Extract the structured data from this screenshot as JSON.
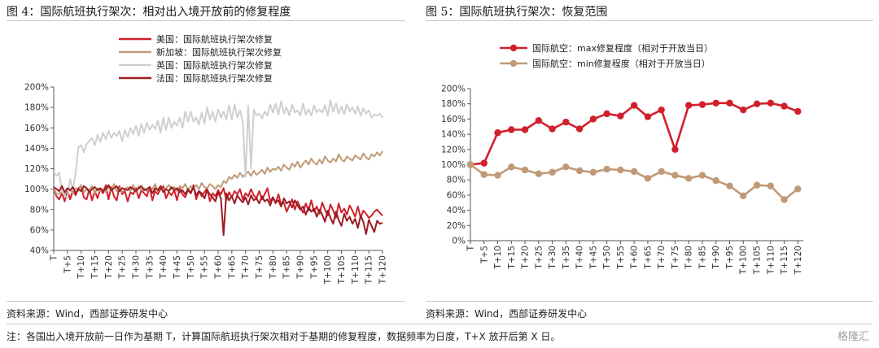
{
  "left": {
    "title": "图 4：国际航班执行架次：相对出入境开放前的修复程度",
    "source": "资料来源：Wind，西部证券研发中心"
  },
  "right": {
    "title": "图 5：国际航班执行架次：恢复范围",
    "source": "资料来源：Wind，西部证券研发中心"
  },
  "note": "注：各国出入境开放前一日作为基期 T，计算国际航班执行架次相对于基期的修复程度，数据频率为日度，T+X 放开后第 X 日。",
  "watermark": "格隆汇",
  "chart_data": [
    {
      "type": "line",
      "x_tick_labels": [
        "T",
        "T+5",
        "T+10",
        "T+15",
        "T+20",
        "T+25",
        "T+30",
        "T+35",
        "T+40",
        "T+45",
        "T+50",
        "T+55",
        "T+60",
        "T+65",
        "T+70",
        "T+75",
        "T+80",
        "T+85",
        "T+90",
        "T+95",
        "T+100",
        "T+105",
        "T+110",
        "T+115",
        "T+120"
      ],
      "ylim": [
        40,
        200
      ],
      "y_ticks": [
        "40%",
        "60%",
        "80%",
        "100%",
        "120%",
        "140%",
        "160%",
        "180%",
        "200%"
      ],
      "legend_position": "top-left",
      "series": [
        {
          "name": "美国：国际航班执行架次修复",
          "color": "#d0202c",
          "values": [
            100,
            93,
            90,
            96,
            88,
            100,
            90,
            99,
            94,
            101,
            103,
            92,
            90,
            100,
            89,
            98,
            91,
            100,
            96,
            104,
            90,
            102,
            93,
            89,
            103,
            95,
            98,
            88,
            97,
            95,
            101,
            91,
            99,
            96,
            93,
            102,
            89,
            98,
            95,
            100,
            103,
            91,
            97,
            94,
            99,
            89,
            101,
            95,
            92,
            99,
            96,
            104,
            90,
            98,
            93,
            97,
            101,
            88,
            96,
            93,
            99,
            95,
            101,
            89,
            97,
            92,
            98,
            95,
            100,
            90,
            96,
            93,
            100,
            94,
            91,
            98,
            90,
            95,
            101,
            88,
            92,
            86,
            95,
            85,
            87,
            78,
            84,
            90,
            80,
            88,
            82,
            77,
            86,
            79,
            89,
            78,
            83,
            76,
            87,
            80,
            74,
            85,
            79,
            72,
            86,
            77,
            81,
            75,
            84,
            79,
            73,
            83,
            72,
            79,
            76,
            72,
            74,
            78,
            80,
            77,
            74
          ]
        },
        {
          "name": "新加坡：国际航班执行架次修复",
          "color": "#c09a77",
          "values": [
            101,
            95,
            96,
            97,
            94,
            100,
            99,
            96,
            101,
            98,
            104,
            97,
            100,
            99,
            103,
            96,
            101,
            98,
            100,
            97,
            102,
            99,
            105,
            98,
            101,
            97,
            100,
            102,
            98,
            104,
            97,
            103,
            99,
            101,
            98,
            102,
            100,
            105,
            98,
            103,
            99,
            101,
            104,
            100,
            102,
            98,
            103,
            101,
            105,
            99,
            103,
            101,
            104,
            100,
            106,
            102,
            101,
            105,
            103,
            100,
            104,
            102,
            108,
            106,
            112,
            110,
            114,
            111,
            116,
            112,
            115,
            117,
            113,
            118,
            114,
            116,
            119,
            115,
            121,
            117,
            120,
            119,
            122,
            118,
            124,
            121,
            119,
            125,
            122,
            127,
            121,
            125,
            128,
            124,
            130,
            126,
            124,
            129,
            125,
            132,
            128,
            126,
            130,
            127,
            134,
            129,
            127,
            132,
            130,
            128,
            133,
            131,
            129,
            135,
            131,
            129,
            134,
            132,
            136,
            133,
            137
          ]
        },
        {
          "name": "英国：国际航班执行架次修复",
          "color": "#cfcfcf",
          "values": [
            117,
            113,
            116,
            98,
            94,
            91,
            110,
            99,
            116,
            141,
            143,
            136,
            144,
            147,
            150,
            143,
            153,
            146,
            155,
            149,
            157,
            150,
            155,
            152,
            157,
            147,
            158,
            151,
            160,
            154,
            162,
            152,
            164,
            155,
            165,
            158,
            163,
            159,
            167,
            155,
            170,
            158,
            170,
            160,
            166,
            162,
            170,
            160,
            176,
            166,
            176,
            166,
            170,
            163,
            175,
            164,
            180,
            168,
            176,
            166,
            178,
            170,
            176,
            168,
            182,
            168,
            183,
            170,
            177,
            166,
            112,
            182,
            120,
            178,
            172,
            174,
            169,
            176,
            172,
            183,
            175,
            184,
            173,
            186,
            174,
            180,
            172,
            183,
            175,
            177,
            172,
            184,
            173,
            178,
            172,
            182,
            175,
            178,
            175,
            182,
            172,
            187,
            176,
            184,
            174,
            181,
            173,
            183,
            176,
            180,
            174,
            181,
            172,
            179,
            174,
            177,
            170,
            173,
            172,
            174,
            170
          ]
        },
        {
          "name": "法国：国际航班执行架次修复",
          "color": "#9c1b24",
          "values": [
            102,
            100,
            98,
            103,
            97,
            101,
            99,
            102,
            96,
            100,
            98,
            103,
            101,
            97,
            100,
            102,
            99,
            101,
            98,
            100,
            104,
            99,
            101,
            103,
            98,
            101,
            100,
            99,
            102,
            100,
            98,
            101,
            103,
            99,
            100,
            102,
            96,
            101,
            99,
            103,
            97,
            100,
            98,
            102,
            99,
            101,
            97,
            99,
            95,
            100,
            96,
            102,
            94,
            98,
            96,
            91,
            99,
            95,
            92,
            88,
            97,
            91,
            55,
            96,
            89,
            93,
            86,
            94,
            90,
            87,
            92,
            85,
            94,
            89,
            91,
            86,
            93,
            88,
            90,
            84,
            92,
            87,
            89,
            83,
            91,
            86,
            88,
            82,
            89,
            84,
            80,
            83,
            75,
            82,
            78,
            81,
            73,
            80,
            75,
            68,
            79,
            72,
            66,
            78,
            70,
            64,
            76,
            69,
            73,
            66,
            71,
            62,
            74,
            68,
            56,
            70,
            64,
            58,
            69,
            66,
            67
          ]
        }
      ]
    },
    {
      "type": "line",
      "x_tick_labels": [
        "T",
        "T+5",
        "T+10",
        "T+15",
        "T+20",
        "T+25",
        "T+30",
        "T+35",
        "T+40",
        "T+45",
        "T+50",
        "T+55",
        "T+60",
        "T+65",
        "T+70",
        "T+75",
        "T+80",
        "T+85",
        "T+90",
        "T+95",
        "T+100",
        "T+105",
        "T+110",
        "T+115",
        "T+120"
      ],
      "x_values": [
        0,
        5,
        10,
        15,
        20,
        25,
        30,
        35,
        40,
        45,
        50,
        55,
        60,
        65,
        70,
        75,
        80,
        85,
        90,
        95,
        100,
        105,
        110,
        115,
        120
      ],
      "ylim": [
        0,
        200
      ],
      "y_ticks": [
        "0%",
        "20%",
        "40%",
        "60%",
        "80%",
        "100%",
        "120%",
        "140%",
        "160%",
        "180%",
        "200%"
      ],
      "legend_position": "top",
      "series": [
        {
          "name": "国际航空：max修复程度（相对于开放当日）",
          "color": "#d0202c",
          "values": [
            100,
            102,
            142,
            146,
            146,
            158,
            147,
            156,
            147,
            160,
            167,
            164,
            178,
            163,
            172,
            120,
            178,
            179,
            181,
            181,
            172,
            180,
            181,
            177,
            170
          ]
        },
        {
          "name": "国际航空：min修复程度（相对于开放当日）",
          "color": "#c09a77",
          "values": [
            100,
            87,
            86,
            97,
            93,
            88,
            90,
            97,
            92,
            90,
            94,
            93,
            91,
            82,
            91,
            86,
            82,
            86,
            79,
            72,
            59,
            73,
            72,
            54,
            68
          ]
        }
      ]
    }
  ]
}
